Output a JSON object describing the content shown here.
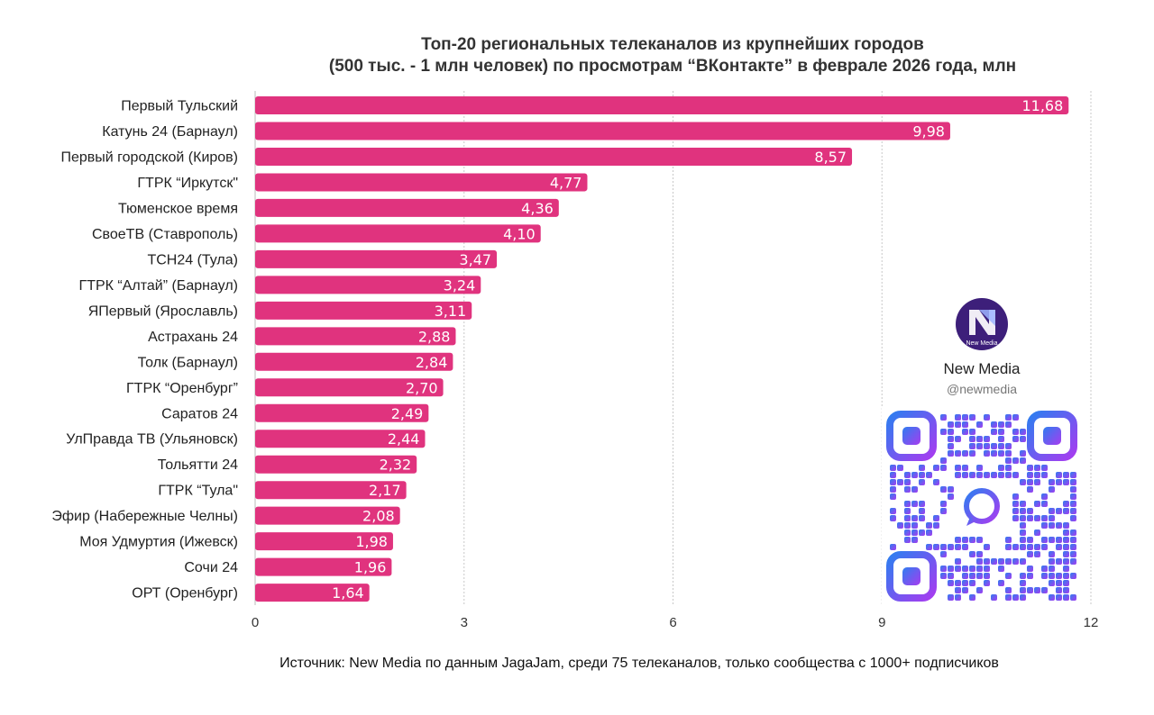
{
  "chart_data": {
    "type": "bar",
    "orientation": "horizontal",
    "title_lines": [
      "Топ-20 региональных телеканалов из крупнейших городов",
      "(500 тыс. - 1 млн человек) по просмотрам “ВКонтакте” в феврале 2026 года, млн"
    ],
    "categories": [
      "Первый Тульский",
      "Катунь 24 (Барнаул)",
      "Первый городской (Киров)",
      "ГТРК “Иркутск\"",
      "Тюменское время",
      "СвоеТВ (Ставрополь)",
      "ТСН24 (Тула)",
      "ГТРК “Алтай” (Барнаул)",
      "ЯПервый (Ярославль)",
      "Астрахань 24",
      "Толк (Барнаул)",
      "ГТРК “Оренбург”",
      "Саратов 24",
      "УлПравда ТВ (Ульяновск)",
      "Тольятти 24",
      "ГТРК “Тула\"",
      "Эфир (Набережные Челны)",
      "Моя Удмуртия (Ижевск)",
      "Сочи 24",
      "ОРТ (Оренбург)"
    ],
    "values": [
      11.68,
      9.98,
      8.57,
      4.77,
      4.36,
      4.1,
      3.47,
      3.24,
      3.11,
      2.88,
      2.84,
      2.7,
      2.49,
      2.44,
      2.32,
      2.17,
      2.08,
      1.98,
      1.96,
      1.64
    ],
    "value_labels": [
      "11,68",
      "9,98",
      "8,57",
      "4,77",
      "4,36",
      "4,10",
      "3,47",
      "3,24",
      "3,11",
      "2,88",
      "2,84",
      "2,70",
      "2,49",
      "2,44",
      "2,32",
      "2,17",
      "2,08",
      "1,98",
      "1,96",
      "1,64"
    ],
    "xlim": [
      0,
      12
    ],
    "xticks": [
      0,
      3,
      6,
      9,
      12
    ],
    "xtick_labels": [
      "0",
      "3",
      "6",
      "9",
      "12"
    ],
    "xlabel": "",
    "ylabel": "",
    "grid": "vertical dashed",
    "legend": "none",
    "bar_color": "#e0337e",
    "source": "Источник: New Media по данным JagaJam, среди 75 телеканалов, только сообщества с 1000+ подписчиков"
  },
  "brand": {
    "logo_text": "New Media",
    "name": "New Media",
    "handle": "@newmedia",
    "logo_color": "#3d1f7a",
    "qr_gradient_start": "#2f7df0",
    "qr_gradient_end": "#a63cf0",
    "qr_icon": "vk-clip-icon"
  }
}
